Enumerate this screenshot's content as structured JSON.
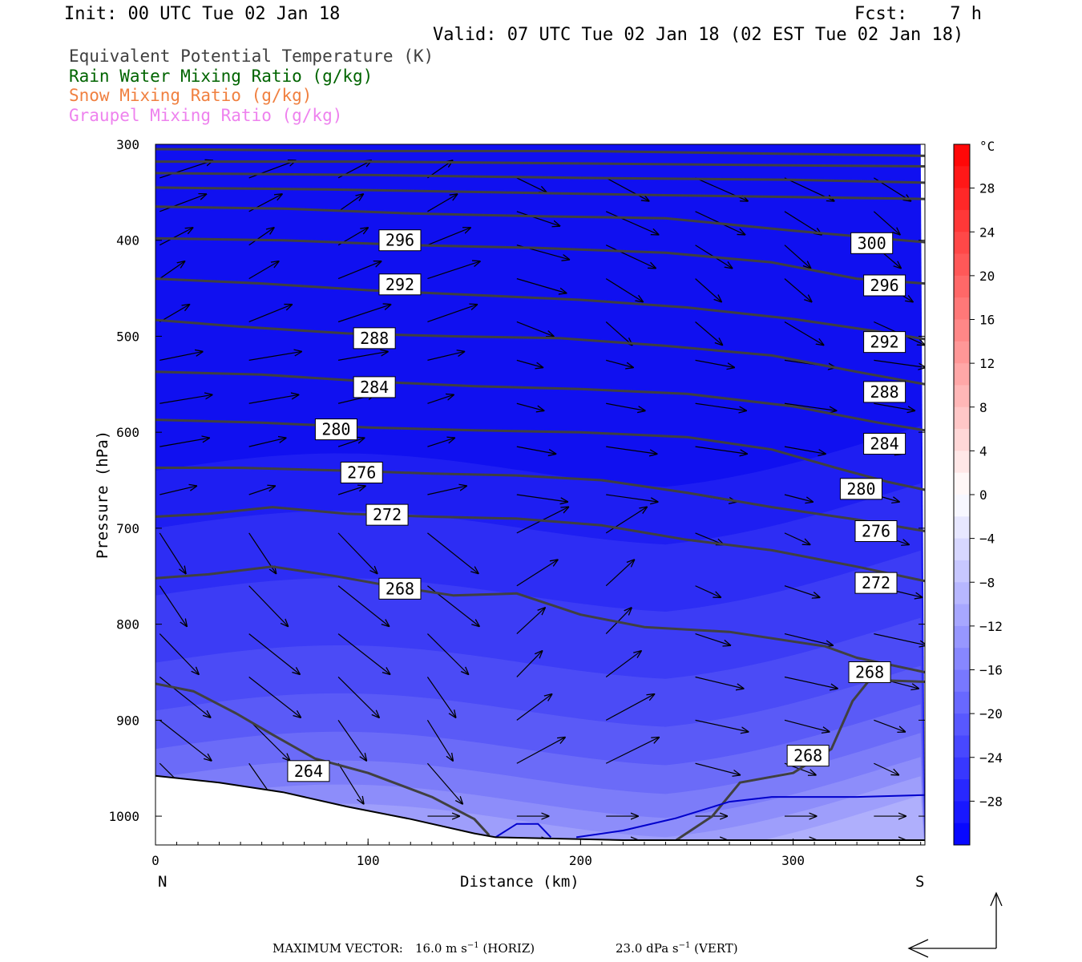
{
  "header": {
    "init": "Init: 00 UTC Tue 02 Jan 18",
    "fcst": "Fcst:    7 h",
    "valid": "Valid: 07 UTC Tue 02 Jan 18 (02 EST Tue 02 Jan 18)"
  },
  "legend": [
    {
      "label": "Equivalent Potential Temperature (K)",
      "color": "#404040"
    },
    {
      "label": "Rain Water Mixing Ratio (g/kg)",
      "color": "#006400"
    },
    {
      "label": "Snow Mixing Ratio (g/kg)",
      "color": "#f08040"
    },
    {
      "label": "Graupel Mixing Ratio (g/kg)",
      "color": "#ee82ee"
    }
  ],
  "chart_data": {
    "type": "cross-section",
    "xlabel": "Distance (km)",
    "ylabel": "Pressure (hPa)",
    "xlim": [
      0,
      362
    ],
    "ylim": [
      1030,
      300
    ],
    "x_ticks": [
      0,
      100,
      200,
      300
    ],
    "y_ticks": [
      300,
      400,
      500,
      600,
      700,
      800,
      900,
      1000
    ],
    "x_end_labels": {
      "left": "N",
      "right": "S"
    },
    "colorbar": {
      "unit": "°C",
      "tick_labels": [
        "28",
        "24",
        "20",
        "16",
        "12",
        "8",
        "4",
        "0",
        "−4",
        "−8",
        "−12",
        "−16",
        "−20",
        "−24",
        "−28"
      ],
      "tick_values": [
        28,
        24,
        20,
        16,
        12,
        8,
        4,
        0,
        -4,
        -8,
        -12,
        -16,
        -20,
        -24,
        -28
      ],
      "range": [
        -32,
        32
      ],
      "warm_color": "#ff0000",
      "cold_color": "#0000ff"
    },
    "theta_e_contours": [
      {
        "value": 264,
        "pts": [
          [
            0,
            862
          ],
          [
            18,
            870
          ],
          [
            38,
            893
          ],
          [
            55,
            915
          ],
          [
            75,
            940
          ],
          [
            100,
            955
          ],
          [
            130,
            980
          ],
          [
            150,
            1003
          ],
          [
            157,
            1020
          ]
        ]
      },
      {
        "value": 268,
        "pts": [
          [
            0,
            752
          ],
          [
            25,
            748
          ],
          [
            55,
            740
          ],
          [
            85,
            750
          ],
          [
            110,
            760
          ],
          [
            140,
            770
          ],
          [
            170,
            768
          ],
          [
            200,
            790
          ],
          [
            230,
            803
          ],
          [
            270,
            808
          ],
          [
            315,
            823
          ],
          [
            330,
            835
          ],
          [
            362,
            850
          ]
        ]
      },
      {
        "value": 268,
        "label": false,
        "pts": [
          [
            245,
            1025
          ],
          [
            262,
            1000
          ],
          [
            275,
            965
          ],
          [
            300,
            955
          ],
          [
            318,
            930
          ],
          [
            328,
            880
          ],
          [
            336,
            858
          ],
          [
            362,
            860
          ]
        ]
      },
      {
        "value": 272,
        "pts": [
          [
            0,
            688
          ],
          [
            25,
            685
          ],
          [
            55,
            678
          ],
          [
            90,
            685
          ],
          [
            130,
            688
          ],
          [
            170,
            690
          ],
          [
            210,
            697
          ],
          [
            250,
            712
          ],
          [
            290,
            723
          ],
          [
            330,
            740
          ],
          [
            362,
            755
          ]
        ]
      },
      {
        "value": 276,
        "pts": [
          [
            0,
            637
          ],
          [
            40,
            637
          ],
          [
            90,
            640
          ],
          [
            130,
            643
          ],
          [
            170,
            645
          ],
          [
            210,
            650
          ],
          [
            250,
            663
          ],
          [
            290,
            678
          ],
          [
            330,
            691
          ],
          [
            362,
            703
          ]
        ]
      },
      {
        "value": 280,
        "pts": [
          [
            0,
            587
          ],
          [
            50,
            590
          ],
          [
            100,
            595
          ],
          [
            150,
            598
          ],
          [
            200,
            600
          ],
          [
            250,
            605
          ],
          [
            290,
            618
          ],
          [
            320,
            637
          ],
          [
            345,
            652
          ],
          [
            362,
            660
          ]
        ]
      },
      {
        "value": 284,
        "pts": [
          [
            0,
            537
          ],
          [
            50,
            540
          ],
          [
            100,
            547
          ],
          [
            150,
            552
          ],
          [
            200,
            555
          ],
          [
            250,
            560
          ],
          [
            300,
            573
          ],
          [
            340,
            590
          ],
          [
            362,
            598
          ]
        ]
      },
      {
        "value": 288,
        "pts": [
          [
            0,
            483
          ],
          [
            40,
            490
          ],
          [
            90,
            497
          ],
          [
            140,
            500
          ],
          [
            190,
            502
          ],
          [
            240,
            510
          ],
          [
            290,
            520
          ],
          [
            330,
            537
          ],
          [
            362,
            550
          ]
        ]
      },
      {
        "value": 292,
        "pts": [
          [
            0,
            440
          ],
          [
            50,
            445
          ],
          [
            100,
            452
          ],
          [
            150,
            457
          ],
          [
            200,
            462
          ],
          [
            250,
            470
          ],
          [
            300,
            482
          ],
          [
            340,
            495
          ],
          [
            362,
            503
          ]
        ]
      },
      {
        "value": 296,
        "pts": [
          [
            0,
            398
          ],
          [
            60,
            400
          ],
          [
            120,
            405
          ],
          [
            180,
            408
          ],
          [
            240,
            413
          ],
          [
            290,
            423
          ],
          [
            330,
            440
          ],
          [
            362,
            445
          ]
        ]
      },
      {
        "value": 300,
        "pts": [
          [
            0,
            365
          ],
          [
            60,
            367
          ],
          [
            120,
            372
          ],
          [
            180,
            375
          ],
          [
            240,
            377
          ],
          [
            300,
            390
          ],
          [
            362,
            402
          ]
        ]
      },
      {
        "value": 304,
        "label": false,
        "pts": [
          [
            0,
            345
          ],
          [
            80,
            347
          ],
          [
            160,
            350
          ],
          [
            240,
            353
          ],
          [
            300,
            355
          ],
          [
            362,
            357
          ]
        ]
      },
      {
        "value": 308,
        "label": false,
        "pts": [
          [
            0,
            330
          ],
          [
            100,
            332
          ],
          [
            200,
            335
          ],
          [
            300,
            337
          ],
          [
            362,
            340
          ]
        ]
      },
      {
        "value": 312,
        "label": false,
        "pts": [
          [
            0,
            318
          ],
          [
            100,
            318
          ],
          [
            200,
            320
          ],
          [
            300,
            322
          ],
          [
            362,
            323
          ]
        ]
      },
      {
        "value": 316,
        "label": false,
        "pts": [
          [
            0,
            305
          ],
          [
            100,
            307
          ],
          [
            200,
            307
          ],
          [
            300,
            310
          ],
          [
            362,
            312
          ]
        ]
      }
    ],
    "contour_labels": [
      {
        "text": "296",
        "x": 115,
        "p": 400
      },
      {
        "text": "292",
        "x": 115,
        "p": 446
      },
      {
        "text": "288",
        "x": 103,
        "p": 502
      },
      {
        "text": "284",
        "x": 103,
        "p": 553
      },
      {
        "text": "280",
        "x": 85,
        "p": 597
      },
      {
        "text": "276",
        "x": 97,
        "p": 642
      },
      {
        "text": "272",
        "x": 109,
        "p": 686
      },
      {
        "text": "268",
        "x": 115,
        "p": 763
      },
      {
        "text": "264",
        "x": 72,
        "p": 953
      },
      {
        "text": "300",
        "x": 337,
        "p": 403
      },
      {
        "text": "296",
        "x": 343,
        "p": 447
      },
      {
        "text": "292",
        "x": 343,
        "p": 506
      },
      {
        "text": "288",
        "x": 343,
        "p": 558
      },
      {
        "text": "284",
        "x": 343,
        "p": 612
      },
      {
        "text": "280",
        "x": 332,
        "p": 659
      },
      {
        "text": "276",
        "x": 339,
        "p": 703
      },
      {
        "text": "272",
        "x": 339,
        "p": 757
      },
      {
        "text": "268",
        "x": 336,
        "p": 850
      },
      {
        "text": "268",
        "x": 307,
        "p": 937
      }
    ],
    "zero_isotherm": [
      [
        160,
        1022
      ],
      [
        170,
        1008
      ],
      [
        180,
        1008
      ],
      [
        186,
        1022
      ]
    ],
    "zero_isotherm_2": [
      [
        198,
        1022
      ],
      [
        220,
        1015
      ],
      [
        245,
        1002
      ],
      [
        270,
        985
      ],
      [
        290,
        980
      ],
      [
        330,
        980
      ],
      [
        362,
        978
      ]
    ],
    "terrain": [
      [
        0,
        958
      ],
      [
        30,
        965
      ],
      [
        60,
        975
      ],
      [
        90,
        990
      ],
      [
        120,
        1003
      ],
      [
        150,
        1018
      ],
      [
        160,
        1022
      ],
      [
        220,
        1025
      ],
      [
        362,
        1025
      ]
    ],
    "footer": {
      "label": "MAXIMUM VECTOR:",
      "horiz_value": "16.0 m s",
      "horiz_unit": "(HORIZ)",
      "vert_value": "23.0 dPa s",
      "vert_unit": "(VERT)",
      "exponent": "−1"
    },
    "grid": false
  }
}
